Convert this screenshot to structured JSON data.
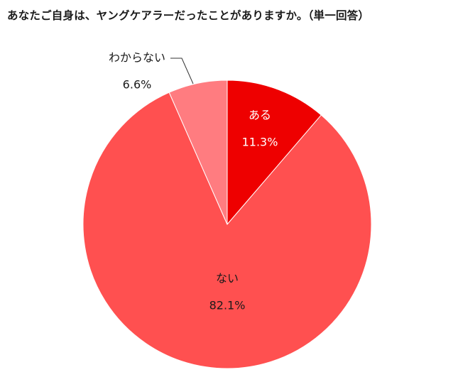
{
  "title": "あなたご自身は、ヤングケアラーだったことがありますか。（単一回答）",
  "chart_data": {
    "type": "pie",
    "title": "あなたご自身は、ヤングケアラーだったことがありますか。（単一回答）",
    "slices": [
      {
        "label": "ある",
        "value": 11.3,
        "value_text": "11.3%",
        "color": "#ee0000",
        "text_color": "#ffffff"
      },
      {
        "label": "ない",
        "value": 82.1,
        "value_text": "82.1%",
        "color": "#ff5050",
        "text_color": "#1a1a1a"
      },
      {
        "label": "わからない",
        "value": 6.6,
        "value_text": "6.6%",
        "color": "#ff7c80",
        "text_color": "#1a1a1a"
      }
    ],
    "start_angle": "12 o'clock",
    "direction": "clockwise",
    "legend": "none",
    "label_placement": "on slices, small slice labelled outside with leader line"
  }
}
